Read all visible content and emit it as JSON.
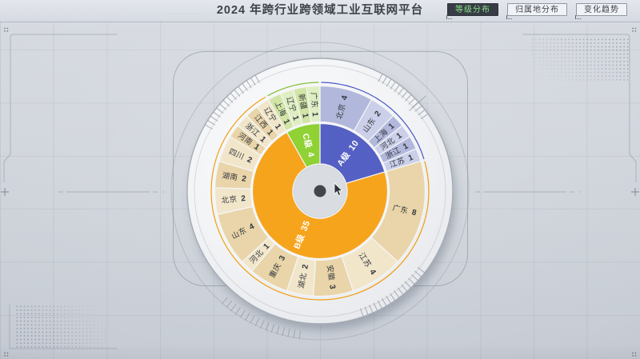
{
  "header": {
    "title": "2024 年跨行业跨领域工业互联网平台",
    "tabs": [
      {
        "label": "等级分布",
        "active": true
      },
      {
        "label": "归属地分布",
        "active": false
      },
      {
        "label": "变化趋势",
        "active": false
      }
    ]
  },
  "colors": {
    "active_tab_bg": "#383d45",
    "active_tab_text": "#8be08b",
    "inactive_tab_text": "#3a3f46",
    "level_a_blue": "#5560c4",
    "level_b_orange": "#f7a41d",
    "level_c_green": "#90d134",
    "platter_white": "#f3f4f6",
    "hub_gray": "#d9dce1",
    "center_dot": "#43464c"
  },
  "chart_data": {
    "type": "sunburst",
    "title": "2024 年跨行业跨领域工业互联网平台",
    "total": 49,
    "direction": "clockwise-from-top",
    "rings": [
      "等级(内环)",
      "省份(外环)"
    ],
    "series": [
      {
        "name": "A级",
        "value": 10,
        "color": "#5560c4",
        "outline": "#3f50c2",
        "children_colors": [
          "#b2b8dc",
          "#cbcfe9"
        ],
        "children": [
          {
            "name": "北京",
            "value": 4
          },
          {
            "name": "山东",
            "value": 2
          },
          {
            "name": "上海",
            "value": 1
          },
          {
            "name": "河北",
            "value": 1
          },
          {
            "name": "浙江",
            "value": 1
          },
          {
            "name": "江苏",
            "value": 1
          }
        ]
      },
      {
        "name": "B级",
        "value": 35,
        "color": "#f7a41d",
        "outline": "#f19a00",
        "children_colors": [
          "#e9d5a9",
          "#f1e6ca"
        ],
        "children": [
          {
            "name": "广东",
            "value": 8
          },
          {
            "name": "江苏",
            "value": 4
          },
          {
            "name": "安徽",
            "value": 3
          },
          {
            "name": "湖北",
            "value": 2
          },
          {
            "name": "重庆",
            "value": 3
          },
          {
            "name": "河北",
            "value": 1
          },
          {
            "name": "山东",
            "value": 4
          },
          {
            "name": "北京",
            "value": 2
          },
          {
            "name": "湖南",
            "value": 2
          },
          {
            "name": "四川",
            "value": 2
          },
          {
            "name": "河南",
            "value": 1
          },
          {
            "name": "浙江",
            "value": 1
          },
          {
            "name": "江西",
            "value": 1
          },
          {
            "name": "辽宁",
            "value": 1
          }
        ]
      },
      {
        "name": "C级",
        "value": 4,
        "color": "#90d134",
        "outline": "#7cbb28",
        "children_colors": [
          "#d2e5a6",
          "#dfeec2"
        ],
        "children": [
          {
            "name": "上海",
            "value": 1
          },
          {
            "name": "辽宁",
            "value": 1
          },
          {
            "name": "新疆",
            "value": 1
          },
          {
            "name": "广东",
            "value": 1
          }
        ]
      }
    ]
  }
}
